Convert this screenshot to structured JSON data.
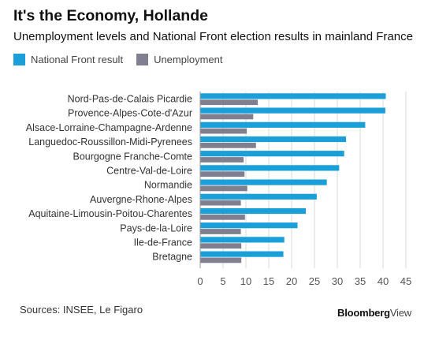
{
  "header": {
    "title": "It's the Economy, Hollande",
    "subtitle": "Unemployment levels and National Front election results in mainland France"
  },
  "colors": {
    "national_front": "#1a9fd9",
    "unemployment": "#7f7f8f",
    "grid": "#d9d9d9",
    "axis_text": "#555555"
  },
  "chart_data": {
    "type": "bar",
    "orientation": "horizontal",
    "categories": [
      "Nord-Pas-de-Calais Picardie",
      "Provence-Alpes-Cote-d'Azur",
      "Alsace-Lorraine-Champagne-Ardenne",
      "Languedoc-Roussillon-Midi-Pyrenees",
      "Bourgogne Franche-Comte",
      "Centre-Val-de-Loire",
      "Normandie",
      "Auvergne-Rhone-Alpes",
      "Aquitaine-Limousin-Poitou-Charentes",
      "Pays-de-la-Loire",
      "Ile-de-France",
      "Bretagne"
    ],
    "series": [
      {
        "name": "National Front result",
        "color": "#1a9fd9",
        "values": [
          40.6,
          40.5,
          36.1,
          31.9,
          31.5,
          30.4,
          27.7,
          25.5,
          23.1,
          21.3,
          18.4,
          18.2
        ]
      },
      {
        "name": "Unemployment",
        "color": "#7f7f8f",
        "values": [
          12.6,
          11.6,
          10.2,
          12.2,
          9.5,
          9.7,
          10.3,
          8.9,
          9.8,
          8.9,
          9.0,
          9.0
        ]
      }
    ],
    "xlim": [
      0,
      45
    ],
    "xticks": [
      "0",
      "5",
      "10",
      "15",
      "20",
      "25",
      "30",
      "35",
      "40",
      "45"
    ],
    "grid": true,
    "legend_position": "top-left"
  },
  "footer": {
    "source": "Sources: INSEE, Le Figaro",
    "brand_bold": "Bloomberg",
    "brand_light": "View"
  }
}
